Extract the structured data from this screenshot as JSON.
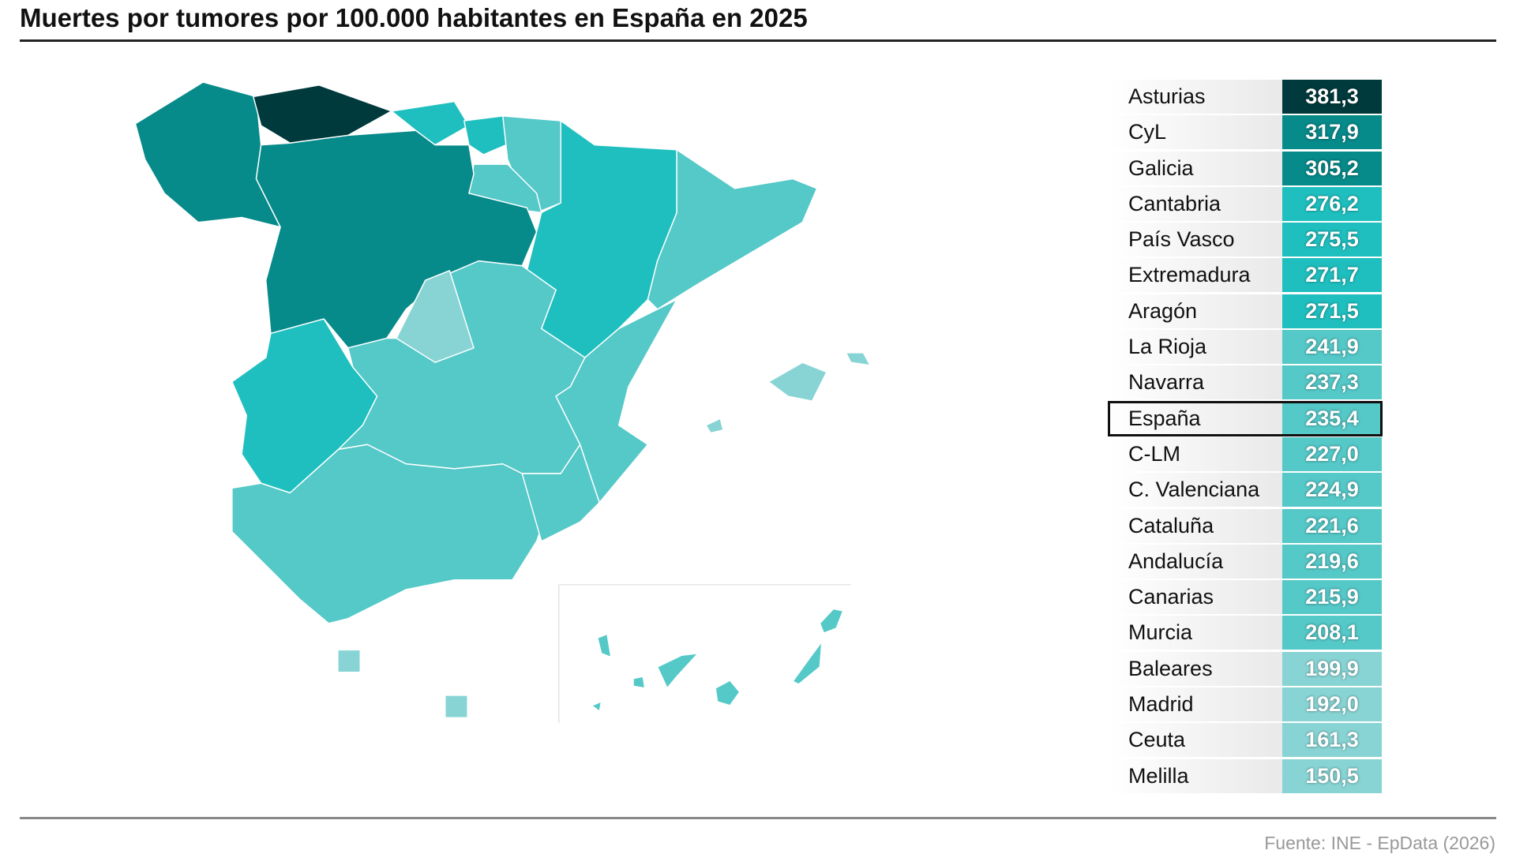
{
  "header": {
    "title": "Muertes por tumores por 100.000 habitantes en España en 2025"
  },
  "table": {
    "rows": [
      {
        "name": "Asturias",
        "value": 381.3,
        "label": "381,3",
        "color": "#003a3c"
      },
      {
        "name": "CyL",
        "value": 317.9,
        "label": "317,9",
        "color": "#078a8a"
      },
      {
        "name": "Galicia",
        "value": 305.2,
        "label": "305,2",
        "color": "#078a8a"
      },
      {
        "name": "Cantabria",
        "value": 276.2,
        "label": "276,2",
        "color": "#1fbfbf"
      },
      {
        "name": "País Vasco",
        "value": 275.5,
        "label": "275,5",
        "color": "#1fbfbf"
      },
      {
        "name": "Extremadura",
        "value": 271.7,
        "label": "271,7",
        "color": "#1fbfbf"
      },
      {
        "name": "Aragón",
        "value": 271.5,
        "label": "271,5",
        "color": "#1fbfbf"
      },
      {
        "name": "La Rioja",
        "value": 241.9,
        "label": "241,9",
        "color": "#55c8c8"
      },
      {
        "name": "Navarra",
        "value": 237.3,
        "label": "237,3",
        "color": "#55c8c8"
      },
      {
        "name": "España",
        "value": 235.4,
        "label": "235,4",
        "color": "#55c8c8",
        "highlight": true
      },
      {
        "name": "C-LM",
        "value": 227.0,
        "label": "227,0",
        "color": "#55c8c8"
      },
      {
        "name": "C. Valenciana",
        "value": 224.9,
        "label": "224,9",
        "color": "#55c8c8"
      },
      {
        "name": "Cataluña",
        "value": 221.6,
        "label": "221,6",
        "color": "#55c8c8"
      },
      {
        "name": "Andalucía",
        "value": 219.6,
        "label": "219,6",
        "color": "#55c8c8"
      },
      {
        "name": "Canarias",
        "value": 215.9,
        "label": "215,9",
        "color": "#55c8c8"
      },
      {
        "name": "Murcia",
        "value": 208.1,
        "label": "208,1",
        "color": "#55c8c8"
      },
      {
        "name": "Baleares",
        "value": 199.9,
        "label": "199,9",
        "color": "#88d4d4"
      },
      {
        "name": "Madrid",
        "value": 192.0,
        "label": "192,0",
        "color": "#88d4d4"
      },
      {
        "name": "Ceuta",
        "value": 161.3,
        "label": "161,3",
        "color": "#88d4d4"
      },
      {
        "name": "Melilla",
        "value": 150.5,
        "label": "150,5",
        "color": "#88d4d4"
      }
    ]
  },
  "source": "Fuente: INE - EpData (2026)"
}
